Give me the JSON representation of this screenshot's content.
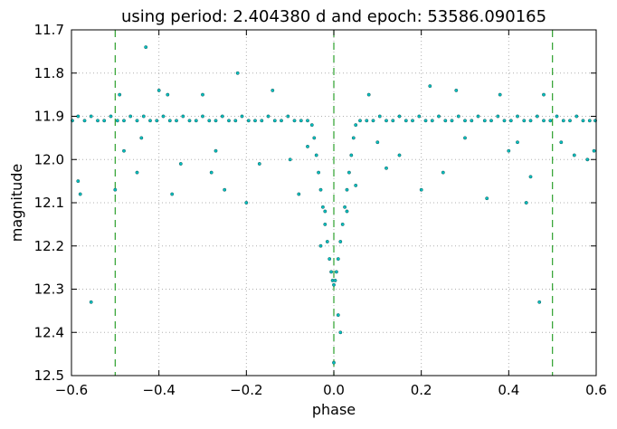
{
  "chart_data": {
    "type": "scatter",
    "title": "using period: 2.404380 d and epoch: 53586.090165",
    "xlabel": "phase",
    "ylabel": "magnitude",
    "xlim": [
      -0.6,
      0.6
    ],
    "ylim": [
      11.7,
      12.5
    ],
    "y_inverted": true,
    "grid": true,
    "grid_style": "dotted",
    "x_ticks": [
      "−0.6",
      "−0.4",
      "−0.2",
      "0.0",
      "0.2",
      "0.4",
      "0.6"
    ],
    "x_tick_values": [
      -0.6,
      -0.4,
      -0.2,
      0.0,
      0.2,
      0.4,
      0.6
    ],
    "y_ticks": [
      "11.7",
      "11.8",
      "11.9",
      "12.0",
      "12.1",
      "12.2",
      "12.3",
      "12.4",
      "12.5"
    ],
    "y_tick_values": [
      11.7,
      11.8,
      11.9,
      12.0,
      12.1,
      12.2,
      12.3,
      12.4,
      12.5
    ],
    "marker_color": "#00bfbf",
    "marker_edge_color": "#1a5a5a",
    "reference_line_color": "#2ca02c",
    "vertical_lines": [
      -0.5,
      0.0,
      0.5
    ],
    "series": [
      {
        "x": [
          -0.598,
          -0.585,
          -0.57,
          -0.555,
          -0.54,
          -0.525,
          -0.51,
          -0.495,
          -0.48,
          -0.465,
          -0.45,
          -0.435,
          -0.42,
          -0.405,
          -0.39,
          -0.375,
          -0.36,
          -0.345,
          -0.33,
          -0.315,
          -0.3,
          -0.285,
          -0.27,
          -0.255,
          -0.24,
          -0.225,
          -0.21,
          -0.195,
          -0.18,
          -0.165,
          -0.15,
          -0.135,
          -0.12,
          -0.105,
          -0.09,
          -0.075,
          -0.06,
          -0.05,
          -0.045,
          -0.04,
          -0.035,
          -0.03,
          -0.025,
          -0.02,
          -0.015,
          -0.01,
          -0.006,
          -0.003,
          0.0,
          0.003,
          0.006,
          0.01,
          0.015,
          0.02,
          0.025,
          0.03,
          0.035,
          0.04,
          0.045,
          0.05,
          0.06,
          0.075,
          0.09,
          0.105,
          0.12,
          0.135,
          0.15,
          0.165,
          0.18,
          0.195,
          0.21,
          0.225,
          0.24,
          0.255,
          0.27,
          0.285,
          0.3,
          0.315,
          0.33,
          0.345,
          0.36,
          0.375,
          0.39,
          0.405,
          0.42,
          0.435,
          0.45,
          0.465,
          0.48,
          0.495,
          0.51,
          0.525,
          0.54,
          0.555,
          0.57,
          0.585,
          0.598
        ],
        "y": [
          11.91,
          11.9,
          11.91,
          11.9,
          11.91,
          11.91,
          11.9,
          11.91,
          11.91,
          11.9,
          11.91,
          11.9,
          11.91,
          11.91,
          11.9,
          11.91,
          11.91,
          11.9,
          11.91,
          11.91,
          11.9,
          11.91,
          11.91,
          11.9,
          11.91,
          11.91,
          11.9,
          11.91,
          11.91,
          11.91,
          11.9,
          11.91,
          11.91,
          11.9,
          11.91,
          11.91,
          11.91,
          11.92,
          11.95,
          11.99,
          12.03,
          12.07,
          12.11,
          12.15,
          12.19,
          12.23,
          12.26,
          12.28,
          12.29,
          12.28,
          12.26,
          12.23,
          12.19,
          12.15,
          12.11,
          12.07,
          12.03,
          11.99,
          11.95,
          11.92,
          11.91,
          11.91,
          11.91,
          11.9,
          11.91,
          11.91,
          11.9,
          11.91,
          11.91,
          11.9,
          11.91,
          11.91,
          11.9,
          11.91,
          11.91,
          11.9,
          11.91,
          11.91,
          11.9,
          11.91,
          11.91,
          11.9,
          11.91,
          11.91,
          11.9,
          11.91,
          11.91,
          11.9,
          11.91,
          11.91,
          11.9,
          11.91,
          11.91,
          11.9,
          11.91,
          11.91,
          11.91
        ]
      }
    ],
    "outliers": {
      "x": [
        -0.585,
        -0.58,
        -0.555,
        -0.5,
        -0.49,
        -0.48,
        -0.45,
        -0.44,
        -0.43,
        -0.4,
        -0.38,
        -0.37,
        -0.35,
        -0.3,
        -0.28,
        -0.27,
        -0.25,
        -0.22,
        -0.2,
        -0.17,
        -0.14,
        -0.1,
        -0.08,
        -0.06,
        -0.03,
        -0.02,
        0.0,
        0.01,
        0.015,
        0.03,
        0.05,
        0.08,
        0.1,
        0.12,
        0.15,
        0.2,
        0.22,
        0.25,
        0.28,
        0.3,
        0.35,
        0.38,
        0.4,
        0.42,
        0.44,
        0.45,
        0.47,
        0.48,
        0.52,
        0.55,
        0.58,
        0.595
      ],
      "y": [
        12.05,
        12.08,
        12.33,
        12.07,
        11.85,
        11.98,
        12.03,
        11.95,
        11.74,
        11.84,
        11.85,
        12.08,
        12.01,
        11.85,
        12.03,
        11.98,
        12.07,
        11.8,
        12.1,
        12.01,
        11.84,
        12.0,
        12.08,
        11.97,
        12.2,
        12.12,
        12.47,
        12.36,
        12.4,
        12.12,
        12.06,
        11.85,
        11.96,
        12.02,
        11.99,
        12.07,
        11.83,
        12.03,
        11.84,
        11.95,
        12.09,
        11.85,
        11.98,
        11.96,
        12.1,
        12.04,
        12.33,
        11.85,
        11.96,
        11.99,
        12.0,
        11.98
      ]
    }
  }
}
